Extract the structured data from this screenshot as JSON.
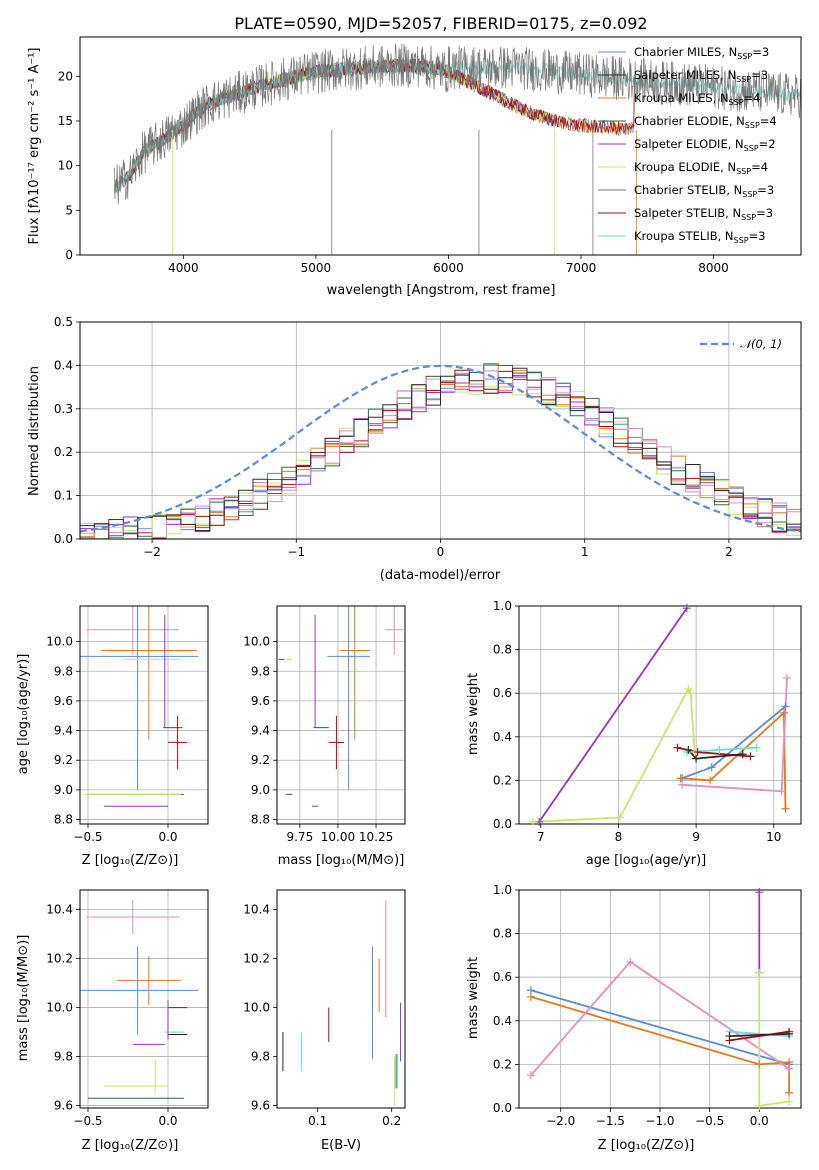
{
  "colors": {
    "chabrier_miles": "#5b8bd6",
    "salpeter_miles": "#2a2a2a",
    "kroupa_miles": "#e07b1f",
    "chabrier_elodie": "#2f6a4f",
    "salpeter_elodie": "#9932c4",
    "kroupa_elodie": "#c8e66a",
    "chabrier_stelib": "#777777",
    "salpeter_stelib": "#a01010",
    "kroupa_stelib": "#6fd9d0",
    "pink": "#e68bbf",
    "gaussian": "#5b8bd6",
    "grid": "#b0b0b0"
  },
  "chart_data": [
    {
      "id": "spectrum",
      "type": "line",
      "title": "PLATE=0590, MJD=52057, FIBERID=0175, z=0.092",
      "xlabel": "wavelength [Angstrom, rest frame]",
      "ylabel": "Flux [fλ10⁻¹⁷ erg cm⁻² s⁻¹ A⁻¹]",
      "xlim": [
        3220,
        8660
      ],
      "ylim": [
        0,
        24.4
      ],
      "xticks": [
        4000,
        5000,
        6000,
        7000,
        8000
      ],
      "yticks": [
        0,
        5,
        10,
        15,
        20
      ],
      "grid": false,
      "legend_position": "top-right",
      "legend": [
        {
          "text": "Chabrier MILES, N",
          "sub": "SSP",
          "val": "=3",
          "color": "chabrier_miles"
        },
        {
          "text": "Salpeter MILES, N",
          "sub": "SSP",
          "val": "=3",
          "color": "salpeter_miles"
        },
        {
          "text": "Kroupa MILES, N",
          "sub": "SSP",
          "val": "=4",
          "color": "kroupa_miles"
        },
        {
          "text": "Chabrier ELODIE, N",
          "sub": "SSP",
          "val": "=4",
          "color": "chabrier_elodie"
        },
        {
          "text": "Salpeter ELODIE, N",
          "sub": "SSP",
          "val": "=2",
          "color": "salpeter_elodie"
        },
        {
          "text": "Kroupa ELODIE, N",
          "sub": "SSP",
          "val": "=4",
          "color": "kroupa_elodie"
        },
        {
          "text": "Chabrier STELIB, N",
          "sub": "SSP",
          "val": "=3",
          "color": "chabrier_stelib"
        },
        {
          "text": "Salpeter STELIB, N",
          "sub": "SSP",
          "val": "=3",
          "color": "salpeter_stelib"
        },
        {
          "text": "Kroupa STELIB, N",
          "sub": "SSP",
          "val": "=3",
          "color": "kroupa_stelib"
        }
      ],
      "continuum": [
        [
          3480,
          7.5
        ],
        [
          3600,
          9
        ],
        [
          3700,
          11.5
        ],
        [
          3800,
          12.5
        ],
        [
          3900,
          13.5
        ],
        [
          4000,
          14.5
        ],
        [
          4100,
          16
        ],
        [
          4200,
          17
        ],
        [
          4300,
          17.5
        ],
        [
          4400,
          18
        ],
        [
          4600,
          19
        ],
        [
          4800,
          19.8
        ],
        [
          5000,
          20.5
        ],
        [
          5200,
          20.8
        ],
        [
          5400,
          21
        ],
        [
          5600,
          21.2
        ],
        [
          5800,
          21.2
        ],
        [
          6000,
          20.5
        ],
        [
          6200,
          19
        ],
        [
          6400,
          17.5
        ],
        [
          6600,
          16
        ],
        [
          6800,
          15
        ],
        [
          7000,
          14.5
        ],
        [
          7200,
          14.3
        ],
        [
          7400,
          14
        ]
      ],
      "continuum_red": [
        [
          6000,
          21
        ],
        [
          6500,
          21
        ],
        [
          7000,
          20.2
        ],
        [
          7500,
          19.5
        ],
        [
          8000,
          18.8
        ],
        [
          8500,
          18
        ],
        [
          8660,
          17.8
        ]
      ]
    },
    {
      "id": "residuals",
      "type": "line",
      "xlabel": "(data-model)/error",
      "ylabel": "Normed distribution",
      "xlim": [
        -2.5,
        2.5
      ],
      "ylim": [
        0,
        0.5
      ],
      "xticks": [
        -2,
        -1,
        0,
        1,
        2
      ],
      "yticks": [
        0.0,
        0.1,
        0.2,
        0.3,
        0.4,
        0.5
      ],
      "grid": true,
      "legend_position": "top-right",
      "gaussian_label": "𝒩(0, 1)",
      "bin_width": 0.1
    },
    {
      "id": "age_vs_z",
      "type": "scatter",
      "xlabel": "Z [log₁₀(Z/Z⊙)]",
      "ylabel": "age  [log₁₀(age/yr)]",
      "xlim": [
        -0.55,
        0.25
      ],
      "ylim": [
        8.77,
        10.24
      ],
      "xticks": [
        -0.5,
        0.0
      ],
      "yticks": [
        8.8,
        9.0,
        9.2,
        9.4,
        9.6,
        9.8,
        10.0
      ],
      "grid": true,
      "points": [
        {
          "color": "pink",
          "x": -0.22,
          "dx": 0.29,
          "y": 10.08,
          "dy": 0.17
        },
        {
          "color": "kroupa_miles",
          "x": -0.12,
          "dx": 0.3,
          "y": 9.94,
          "dy": 0.6
        },
        {
          "color": "chabrier_miles",
          "x": -0.19,
          "dx": 0.38,
          "y": 9.9,
          "dy": 0.9
        },
        {
          "color": "kroupa_elodie",
          "x": -0.1,
          "dx": 0.18,
          "y": 9.88,
          "dy": 0.0
        },
        {
          "color": "salpeter_elodie",
          "x": -0.02,
          "dx": 0.0,
          "y": 9.8,
          "dy": 0.38
        },
        {
          "color": "kroupa_stelib",
          "x": 0.03,
          "dx": 0.06,
          "y": 9.42,
          "dy": 0.0
        },
        {
          "color": "chabrier_elodie",
          "x": 0.03,
          "dx": 0.06,
          "y": 9.42,
          "dy": 0.0
        },
        {
          "color": "salpeter_stelib",
          "x": 0.06,
          "dx": 0.06,
          "y": 9.32,
          "dy": 0.18
        },
        {
          "color": "chabrier_elodie",
          "x": -0.2,
          "dx": 0.3,
          "y": 8.97,
          "dy": 0.0
        },
        {
          "color": "kroupa_elodie",
          "x": -0.22,
          "dx": 0.3,
          "y": 8.97,
          "dy": 0.0
        },
        {
          "color": "salpeter_elodie",
          "x": -0.2,
          "dx": 0.2,
          "y": 8.89,
          "dy": 0.0
        }
      ]
    },
    {
      "id": "age_vs_mass",
      "type": "scatter",
      "xlabel": "mass [log₁₀(M/M⊙)]",
      "xlim": [
        9.6,
        10.44
      ],
      "ylim": [
        8.77,
        10.24
      ],
      "xticks": [
        9.75,
        10.0,
        10.25
      ],
      "yticks": [
        8.8,
        9.0,
        9.2,
        9.4,
        9.6,
        9.8,
        10.0
      ],
      "grid": true,
      "points": [
        {
          "color": "pink",
          "x": 10.37,
          "dx": 0.06,
          "y": 10.08,
          "dy": 0.17
        },
        {
          "color": "kroupa_miles",
          "x": 10.11,
          "dx": 0.1,
          "y": 9.94,
          "dy": 0.6
        },
        {
          "color": "chabrier_miles",
          "x": 10.07,
          "dx": 0.14,
          "y": 9.9,
          "dy": 0.9
        },
        {
          "color": "kroupa_elodie",
          "x": 9.68,
          "dx": 0.0,
          "y": 9.88,
          "dy": 0.0
        },
        {
          "color": "chabrier_elodie",
          "x": 9.63,
          "dx": 0.0,
          "y": 9.88,
          "dy": 0.0
        },
        {
          "color": "salpeter_elodie",
          "x": 9.85,
          "dx": 0.0,
          "y": 9.8,
          "dy": 0.38
        },
        {
          "color": "kroupa_stelib",
          "x": 9.89,
          "dx": 0.05,
          "y": 9.42,
          "dy": 0.0
        },
        {
          "color": "chabrier_elodie",
          "x": 9.89,
          "dx": 0.05,
          "y": 9.42,
          "dy": 0.0
        },
        {
          "color": "salpeter_stelib",
          "x": 9.99,
          "dx": 0.05,
          "y": 9.32,
          "dy": 0.18
        },
        {
          "color": "kroupa_elodie",
          "x": 9.68,
          "dx": 0.0,
          "y": 8.97,
          "dy": 0.0
        },
        {
          "color": "chabrier_elodie",
          "x": 9.68,
          "dx": 0.0,
          "y": 8.97,
          "dy": 0.0
        },
        {
          "color": "salpeter_elodie",
          "x": 9.85,
          "dx": 0.0,
          "y": 8.89,
          "dy": 0.0
        }
      ]
    },
    {
      "id": "weight_vs_age",
      "type": "line",
      "xlabel": "age  [log₁₀(age/yr)]",
      "ylabel": "mass weight",
      "xlim": [
        6.72,
        10.35
      ],
      "ylim": [
        0,
        1
      ],
      "xticks": [
        7,
        8,
        9,
        10
      ],
      "yticks": [
        0.0,
        0.2,
        0.4,
        0.6,
        0.8,
        1.0
      ],
      "grid": true,
      "series": [
        {
          "color": "salpeter_elodie",
          "x": [
            6.98,
            8.88
          ],
          "y": [
            0.01,
            0.99
          ]
        },
        {
          "color": "kroupa_elodie",
          "x": [
            6.9,
            8.02,
            8.9,
            8.93,
            8.98
          ],
          "y": [
            0.01,
            0.03,
            0.62,
            0.6,
            0.33
          ]
        },
        {
          "color": "chabrier_miles",
          "x": [
            8.82,
            9.2,
            10.15
          ],
          "y": [
            0.21,
            0.26,
            0.54
          ]
        },
        {
          "color": "kroupa_miles",
          "x": [
            8.8,
            9.18,
            10.13,
            10.15
          ],
          "y": [
            0.21,
            0.2,
            0.51,
            0.07
          ]
        },
        {
          "color": "salpeter_stelib",
          "x": [
            8.76,
            9.02,
            9.7
          ],
          "y": [
            0.35,
            0.33,
            0.31
          ]
        },
        {
          "color": "kroupa_stelib",
          "x": [
            8.88,
            9.3,
            9.78
          ],
          "y": [
            0.33,
            0.34,
            0.35
          ]
        },
        {
          "color": "salpeter_miles",
          "x": [
            8.9,
            9.0,
            9.6
          ],
          "y": [
            0.34,
            0.3,
            0.32
          ]
        },
        {
          "color": "pink",
          "x": [
            8.82,
            10.1,
            10.17
          ],
          "y": [
            0.18,
            0.15,
            0.67
          ]
        }
      ]
    },
    {
      "id": "mass_vs_z",
      "type": "scatter",
      "xlabel": "Z [log₁₀(Z/Z⊙)]",
      "ylabel": "mass [log₁₀(M/M⊙)]",
      "xlim": [
        -0.55,
        0.25
      ],
      "ylim": [
        9.59,
        10.48
      ],
      "xticks": [
        -0.5,
        0.0
      ],
      "yticks": [
        9.6,
        9.8,
        10.0,
        10.2,
        10.4
      ],
      "grid": true,
      "points": [
        {
          "color": "pink",
          "x": -0.22,
          "dx": 0.29,
          "y": 10.37,
          "dy": 0.07
        },
        {
          "color": "kroupa_miles",
          "x": -0.12,
          "dx": 0.2,
          "y": 10.11,
          "dy": 0.1
        },
        {
          "color": "chabrier_miles",
          "x": -0.19,
          "dx": 0.38,
          "y": 10.07,
          "dy": 0.18
        },
        {
          "color": "salpeter_elodie",
          "x": -0.12,
          "dx": 0.1,
          "y": 9.85,
          "dy": 0.0
        },
        {
          "color": "salpeter_stelib",
          "x": 0.06,
          "dx": 0.06,
          "y": 10.0,
          "dy": 0.0
        },
        {
          "color": "kroupa_stelib",
          "x": 0.04,
          "dx": 0.06,
          "y": 9.9,
          "dy": 0.0
        },
        {
          "color": "salpeter_miles",
          "x": 0.06,
          "dx": 0.06,
          "y": 9.89,
          "dy": 0.0
        },
        {
          "color": "salpeter_elodie",
          "x": 0.0,
          "dx": 0.0,
          "y": 9.95,
          "dy": 0.08
        },
        {
          "color": "kroupa_elodie",
          "x": -0.2,
          "dx": 0.2,
          "y": 9.68,
          "dy": 0.0
        },
        {
          "color": "chabrier_elodie",
          "x": -0.2,
          "dx": 0.3,
          "y": 9.63,
          "dy": 0.0
        },
        {
          "color": "kroupa_elodie",
          "x": -0.08,
          "dx": 0.0,
          "y": 9.72,
          "dy": 0.07
        }
      ]
    },
    {
      "id": "mass_vs_ebv",
      "type": "scatter",
      "xlabel": "E(B-V)",
      "xlim": [
        0.045,
        0.218
      ],
      "ylim": [
        9.59,
        10.48
      ],
      "xticks": [
        0.1,
        0.2
      ],
      "yticks": [
        9.6,
        9.8,
        10.0,
        10.2,
        10.4
      ],
      "grid": false,
      "points": [
        {
          "color": "salpeter_miles",
          "x": 0.053,
          "dx": 0.0,
          "y": 9.82,
          "dy": 0.08
        },
        {
          "color": "kroupa_stelib",
          "x": 0.078,
          "dx": 0.0,
          "y": 9.82,
          "dy": 0.08
        },
        {
          "color": "salpeter_stelib",
          "x": 0.115,
          "dx": 0.0,
          "y": 9.93,
          "dy": 0.07
        },
        {
          "color": "chabrier_miles",
          "x": 0.174,
          "dx": 0.0,
          "y": 10.02,
          "dy": 0.23
        },
        {
          "color": "kroupa_miles",
          "x": 0.183,
          "dx": 0.0,
          "y": 10.09,
          "dy": 0.11
        },
        {
          "color": "pink",
          "x": 0.192,
          "dx": 0.0,
          "y": 10.2,
          "dy": 0.24
        },
        {
          "color": "kroupa_elodie",
          "x": 0.204,
          "dx": 0.0,
          "y": 9.7,
          "dy": 0.1
        },
        {
          "color": "chabrier_elodie",
          "x": 0.206,
          "dx": 0.0,
          "y": 9.74,
          "dy": 0.07
        },
        {
          "color": "salpeter_elodie",
          "x": 0.212,
          "dx": 0.0,
          "y": 9.9,
          "dy": 0.12
        },
        {
          "color": "kroupa_stelib",
          "x": 0.208,
          "dx": 0.0,
          "y": 9.74,
          "dy": 0.07
        }
      ]
    },
    {
      "id": "weight_vs_z",
      "type": "line",
      "xlabel": "Z [log₁₀(Z/Z⊙)]",
      "ylabel": "mass weight",
      "xlim": [
        -2.42,
        0.42
      ],
      "ylim": [
        0,
        1
      ],
      "xticks": [
        -2.0,
        -1.5,
        -1.0,
        -0.5,
        0.0
      ],
      "yticks": [
        0.0,
        0.2,
        0.4,
        0.6,
        0.8,
        1.0
      ],
      "grid": true,
      "series": [
        {
          "color": "chabrier_miles",
          "x": [
            -2.3,
            0.3
          ],
          "y": [
            0.54,
            0.2
          ]
        },
        {
          "color": "kroupa_miles",
          "x": [
            -2.3,
            0.0,
            0.3,
            0.3
          ],
          "y": [
            0.51,
            0.2,
            0.21,
            0.07
          ]
        },
        {
          "color": "pink",
          "x": [
            -2.3,
            -1.3,
            0.3
          ],
          "y": [
            0.15,
            0.67,
            0.18
          ]
        },
        {
          "color": "salpeter_elodie",
          "x": [
            0.0,
            0.0
          ],
          "y": [
            0.62,
            0.99
          ]
        },
        {
          "color": "kroupa_elodie",
          "x": [
            0.0,
            0.0,
            0.3
          ],
          "y": [
            0.62,
            0.01,
            0.03
          ]
        },
        {
          "color": "salpeter_stelib",
          "x": [
            -0.3,
            0.3
          ],
          "y": [
            0.31,
            0.35
          ]
        },
        {
          "color": "kroupa_stelib",
          "x": [
            -0.3,
            0.3
          ],
          "y": [
            0.35,
            0.33
          ]
        },
        {
          "color": "salpeter_miles",
          "x": [
            -0.3,
            0.3
          ],
          "y": [
            0.33,
            0.34
          ]
        }
      ]
    }
  ]
}
